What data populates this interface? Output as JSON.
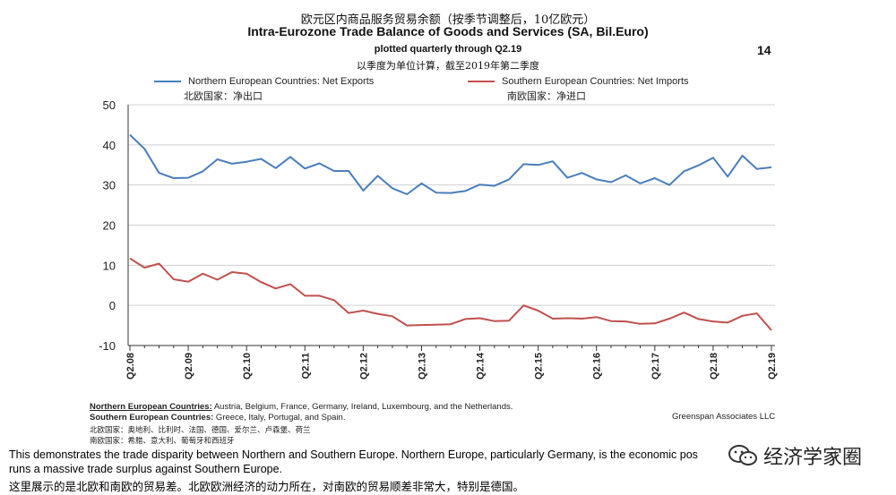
{
  "header": {
    "title_cn": "欧元区内商品服务贸易余额（按季节调整后，10亿欧元）",
    "title_en": "Intra-Eurozone Trade Balance of Goods and Services (SA, Bil.Euro)",
    "subtitle_en": "plotted quarterly through Q2.19",
    "subtitle_cn": "以季度为单位计算，截至2019年第二季度",
    "page_number": "14"
  },
  "legend": {
    "north_en": "Northern European Countries: Net Exports",
    "north_cn": "北欧国家：净出口",
    "south_en": "Southern European Countries: Net Imports",
    "south_cn": "南欧国家：净进口",
    "north_color": "#4a7ebb",
    "south_color": "#c0504d"
  },
  "footnotes": {
    "north_label": "Northern European Countries:",
    "north_list": " Austria, Belgium, France, Germany, Ireland, Luxembourg, and the Netherlands.",
    "south_label": "Southern European Countries:",
    "south_list": " Greece, Italy, Portugal, and Spain.",
    "north_cn": "北欧国家：奥地利、比利时、法国、德国、爱尔兰、卢森堡、荷兰",
    "south_cn": "南欧国家：希腊、意大利、葡萄牙和西班牙",
    "source": "Greenspan Associates LLC"
  },
  "caption": {
    "line1": "This demonstrates the trade disparity between Northern and Southern Europe. Northern Europe, particularly Germany, is the economic po",
    "line1_tail": "s",
    "line1_end": "t",
    "line2": "runs a massive trade surplus against Southern Europe.",
    "line3_cn": "这里展示的是北欧和南欧的贸易差。北欧欧洲经济的动力所在，对南欧的贸易顺差非常大，特别是德国。"
  },
  "watermark": {
    "text": "经济学家圈",
    "icon": "wechat-icon"
  },
  "chart_data": {
    "type": "line",
    "title": "Intra-Eurozone Trade Balance of Goods and Services (SA, Bil.Euro)",
    "ylim": [
      -10,
      50
    ],
    "yticks": [
      -10,
      0,
      10,
      20,
      30,
      40,
      50
    ],
    "x_tick_labels": [
      "Q2.08",
      "Q2.09",
      "Q2.10",
      "Q2.11",
      "Q2.12",
      "Q2.13",
      "Q2.14",
      "Q2.15",
      "Q2.16",
      "Q2.17",
      "Q2.18",
      "Q2.19"
    ],
    "x": [
      "Q2.08",
      "Q3.08",
      "Q4.08",
      "Q1.09",
      "Q2.09",
      "Q3.09",
      "Q4.09",
      "Q1.10",
      "Q2.10",
      "Q3.10",
      "Q4.10",
      "Q1.11",
      "Q2.11",
      "Q3.11",
      "Q4.11",
      "Q1.12",
      "Q2.12",
      "Q3.12",
      "Q4.12",
      "Q1.13",
      "Q2.13",
      "Q3.13",
      "Q4.13",
      "Q1.14",
      "Q2.14",
      "Q3.14",
      "Q4.14",
      "Q1.15",
      "Q2.15",
      "Q3.15",
      "Q4.15",
      "Q1.16",
      "Q2.16",
      "Q3.16",
      "Q4.16",
      "Q1.17",
      "Q2.17",
      "Q3.17",
      "Q4.17",
      "Q1.18",
      "Q2.18",
      "Q3.18",
      "Q4.18",
      "Q1.19",
      "Q2.19"
    ],
    "grid": "horizontal",
    "legend_position": "top",
    "series": [
      {
        "name": "Northern European Countries: Net Exports",
        "color": "#4a7ebb",
        "values": [
          42.5,
          39,
          33,
          31.7,
          31.8,
          33.4,
          36.4,
          35.3,
          35.8,
          36.5,
          34.2,
          37,
          34.1,
          35.4,
          33.5,
          33.5,
          28.6,
          32.3,
          29.2,
          27.7,
          30.4,
          28.1,
          28,
          28.5,
          30.1,
          29.8,
          31.4,
          35.2,
          35,
          35.9,
          31.8,
          33,
          31.4,
          30.7,
          32.4,
          30.4,
          31.7,
          30,
          33.4,
          34.9,
          36.8,
          32.1,
          37.3,
          34,
          34.4
        ]
      },
      {
        "name": "Southern European Countries: Net Imports",
        "color": "#c0504d",
        "values": [
          11.7,
          9.4,
          10.4,
          6.5,
          5.9,
          7.9,
          6.4,
          8.3,
          7.9,
          5.8,
          4.2,
          5.3,
          2.4,
          2.4,
          1.3,
          -1.9,
          -1.3,
          -2.1,
          -2.7,
          -5,
          -4.9,
          -4.8,
          -4.7,
          -3.4,
          -3.2,
          -3.9,
          -3.8,
          0,
          -1.3,
          -3.3,
          -3.2,
          -3.3,
          -2.9,
          -3.9,
          -4,
          -4.6,
          -4.5,
          -3.3,
          -1.8,
          -3.4,
          -4,
          -4.3,
          -2.6,
          -2,
          -6.2
        ]
      }
    ]
  }
}
